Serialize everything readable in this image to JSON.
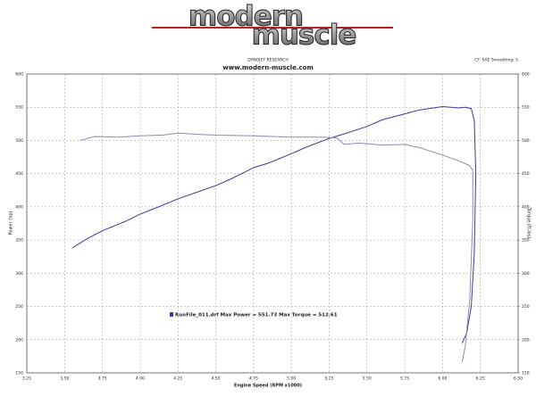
{
  "logo": {
    "line1": "modern",
    "line2": "muscle"
  },
  "chart_data": {
    "type": "line",
    "subtitle": "DYNOJET RESEARCH",
    "title": "www.modern-muscle.com",
    "settings_note": "CF: SAE  Smoothing: 5",
    "legend_text": "RunFile_011.drf Max Power = 551.73     Max Torque = 512.61",
    "xlabel": "Engine Speed (RPM x1000)",
    "ylabel": "Power (hp)",
    "y2label": "Torque (ft-lbs)",
    "xlim": [
      3.25,
      6.5
    ],
    "xticks": [
      {
        "value": 3.25,
        "label": "3.25"
      },
      {
        "value": 3.5,
        "label": "3.50"
      },
      {
        "value": 3.75,
        "label": "3.75"
      },
      {
        "value": 4,
        "label": "4.00"
      },
      {
        "value": 4.25,
        "label": "4.25"
      },
      {
        "value": 4.5,
        "label": "4.50"
      },
      {
        "value": 4.75,
        "label": "4.75"
      },
      {
        "value": 5,
        "label": "5.00"
      },
      {
        "value": 5.25,
        "label": "5.25"
      },
      {
        "value": 5.5,
        "label": "5.50"
      },
      {
        "value": 5.75,
        "label": "5.75"
      },
      {
        "value": 6,
        "label": "6.00"
      },
      {
        "value": 6.25,
        "label": "6.25"
      },
      {
        "value": 6.5,
        "label": "6.50"
      }
    ],
    "ylim": [
      150,
      600
    ],
    "yticks": [
      150,
      200,
      250,
      300,
      350,
      400,
      450,
      500,
      550,
      600
    ],
    "y2lim": [
      150,
      600
    ],
    "y2ticks": [
      150,
      200,
      250,
      300,
      350,
      400,
      450,
      500,
      550,
      600
    ],
    "grid": true,
    "series": [
      {
        "color": "#3b3b9c",
        "x": [
          3.55,
          3.65,
          3.75,
          3.9,
          4.0,
          4.1,
          4.25,
          4.4,
          4.5,
          4.6,
          4.75,
          4.85,
          5.0,
          5.1,
          5.25,
          5.35,
          5.5,
          5.6,
          5.75,
          5.85,
          6.0,
          6.1,
          6.15,
          6.19,
          6.21,
          6.22,
          6.21,
          6.19,
          6.16,
          6.13
        ],
        "values": [
          338,
          352,
          364,
          378,
          389,
          398,
          412,
          424,
          432,
          442,
          459,
          466,
          480,
          490,
          503,
          510,
          521,
          531,
          540,
          546,
          551,
          549,
          550,
          548,
          530,
          450,
          330,
          250,
          210,
          195
        ]
      },
      {
        "color": "#8a8ab4",
        "axis": "y2",
        "x": [
          3.6,
          3.7,
          3.85,
          4.0,
          4.15,
          4.25,
          4.4,
          4.5,
          4.75,
          5.0,
          5.2,
          5.3,
          5.35,
          5.45,
          5.6,
          5.75,
          5.85,
          6.0,
          6.1,
          6.18,
          6.2,
          6.2,
          6.18,
          6.15,
          6.13
        ],
        "values": [
          500,
          506,
          505,
          507,
          508,
          511,
          509,
          508,
          507,
          505,
          505,
          504,
          494,
          496,
          493,
          494,
          489,
          478,
          470,
          462,
          455,
          380,
          260,
          190,
          166
        ]
      }
    ]
  }
}
